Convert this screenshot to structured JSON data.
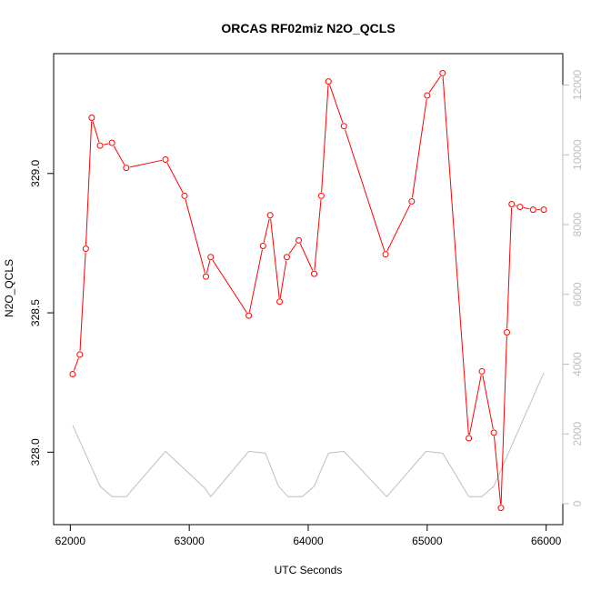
{
  "chart_data": {
    "type": "line",
    "title": "ORCAS RF02miz N2O_QCLS",
    "xlabel": "UTC Seconds",
    "ylabel": "N2O_QCLS",
    "xlim": [
      61860,
      66140
    ],
    "ylim": [
      327.74,
      329.43
    ],
    "y2lim": [
      -600,
      12900
    ],
    "x_ticks": [
      62000,
      63000,
      64000,
      65000,
      66000
    ],
    "y_ticks": [
      328.0,
      328.5,
      329.0
    ],
    "y2_ticks": [
      0,
      2000,
      4000,
      6000,
      8000,
      10000,
      12000
    ],
    "grid": false,
    "series": [
      {
        "color": "#ff0000",
        "axis": "left",
        "style": "line+points",
        "x": [
          62020,
          62080,
          62130,
          62180,
          62250,
          62350,
          62470,
          62800,
          62960,
          63140,
          63180,
          63500,
          63620,
          63680,
          63760,
          63820,
          63920,
          64050,
          64110,
          64170,
          64300,
          64650,
          64870,
          65000,
          65130,
          65350,
          65460,
          65560,
          65620,
          65670,
          65710,
          65780,
          65890,
          65980
        ],
        "y": [
          328.28,
          328.35,
          328.73,
          329.2,
          329.1,
          329.11,
          329.02,
          329.05,
          328.92,
          328.63,
          328.7,
          328.49,
          328.74,
          328.85,
          328.54,
          328.7,
          328.76,
          328.64,
          328.92,
          329.33,
          329.17,
          328.71,
          328.9,
          329.28,
          329.36,
          328.05,
          328.29,
          328.07,
          327.8,
          328.43,
          328.89,
          328.88,
          328.87,
          328.87
        ]
      },
      {
        "color": "#bebebe",
        "axis": "right",
        "style": "line",
        "x": [
          62020,
          62250,
          62350,
          62470,
          62800,
          63130,
          63180,
          63500,
          63640,
          63750,
          63830,
          63950,
          64050,
          64170,
          64300,
          64660,
          64990,
          65130,
          65350,
          65460,
          65560,
          65980
        ],
        "y": [
          2250,
          500,
          200,
          200,
          1500,
          450,
          200,
          1500,
          1450,
          500,
          200,
          200,
          500,
          1450,
          1500,
          200,
          1500,
          1450,
          200,
          200,
          500,
          3750
        ]
      }
    ]
  }
}
